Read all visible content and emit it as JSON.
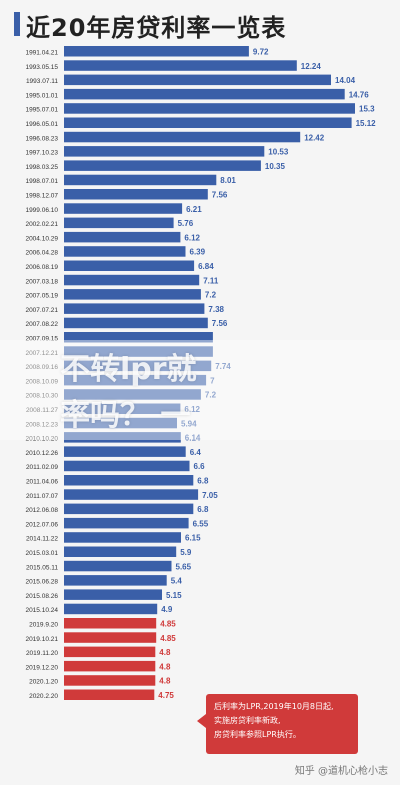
{
  "colors": {
    "before_lpr": "#3a5fa8",
    "after_lpr": "#d03a3a",
    "accent": "#3a5fa8"
  },
  "chart_data": {
    "type": "bar",
    "orientation": "horizontal",
    "title": "近20年房贷利率一览表",
    "categories": [
      "1991.04.21",
      "1993.05.15",
      "1993.07.11",
      "1995.01.01",
      "1995.07.01",
      "1996.05.01",
      "1996.08.23",
      "1997.10.23",
      "1998.03.25",
      "1998.07.01",
      "1998.12.07",
      "1999.06.10",
      "2002.02.21",
      "2004.10.29",
      "2006.04.28",
      "2006.08.19",
      "2007.03.18",
      "2007.05.19",
      "2007.07.21",
      "2007.08.22",
      "2007.09.15",
      "2007.12.21",
      "2008.09.16",
      "2008.10.09",
      "2008.10.30",
      "2008.11.27",
      "2008.12.23",
      "2010.10.20",
      "2010.12.26",
      "2011.02.09",
      "2011.04.06",
      "2011.07.07",
      "2012.06.08",
      "2012.07.06",
      "2014.11.22",
      "2015.03.01",
      "2015.05.11",
      "2015.06.28",
      "2015.08.26",
      "2015.10.24",
      "2019.9.20",
      "2019.10.21",
      "2019.11.20",
      "2019.12.20",
      "2020.1.20",
      "2020.2.20"
    ],
    "values": [
      9.72,
      12.24,
      14.04,
      14.76,
      15.3,
      15.12,
      12.42,
      10.53,
      10.35,
      8.01,
      7.56,
      6.21,
      5.76,
      6.12,
      6.39,
      6.84,
      7.11,
      7.2,
      7.38,
      7.56,
      7.83,
      7.83,
      7.74,
      7.47,
      7.2,
      6.12,
      5.94,
      6.14,
      6.4,
      6.6,
      6.8,
      7.05,
      6.8,
      6.55,
      6.15,
      5.9,
      5.65,
      5.4,
      5.15,
      4.9,
      4.85,
      4.85,
      4.8,
      4.8,
      4.8,
      4.75
    ],
    "value_labels": [
      "9.72",
      "12.24",
      "14.04",
      "14.76",
      "15.3",
      "15.12",
      "12.42",
      "10.53",
      "10.35",
      "8.01",
      "7.56",
      "6.21",
      "5.76",
      "6.12",
      "6.39",
      "6.84",
      "7.11",
      "7.2",
      "7.38",
      "7.56",
      "",
      "",
      "7.74",
      "7",
      "7.2",
      "6.12",
      "5.94",
      "6.14",
      "6.4",
      "6.6",
      "6.8",
      "7.05",
      "6.8",
      "6.55",
      "6.15",
      "5.9",
      "5.65",
      "5.4",
      "5.15",
      "4.9",
      "4.85",
      "4.85",
      "4.8",
      "4.8",
      "4.8",
      "4.75"
    ],
    "lpr_start_index": 40,
    "xlim": [
      0,
      15.3
    ]
  },
  "callout": {
    "line1": "后利率为LPR,2019年10月8日起,",
    "line2": "实施房贷利率新政,",
    "line3": "房贷利率参照LPR执行。"
  },
  "overlay": {
    "line1": "不转lpr就",
    "line2": "率吗？ 一"
  },
  "watermark": "知乎 @道机心枪小志"
}
